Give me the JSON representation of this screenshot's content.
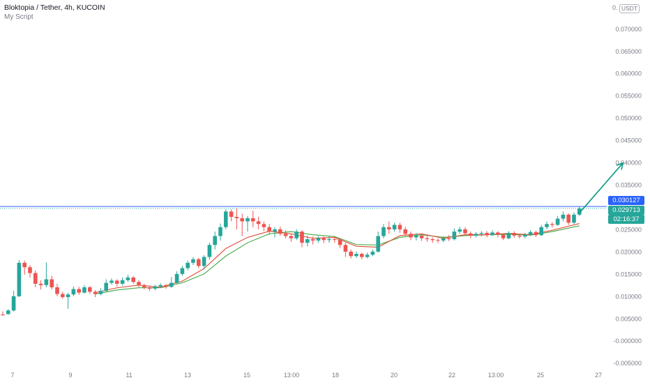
{
  "header": {
    "title": "Bloktopia / Tether, 4h, KUCOIN",
    "indicator": "My Script"
  },
  "currency": "USDT",
  "price_labels": {
    "top_cut": "0.",
    "line_level": "0.030127",
    "last_price": "0.029713",
    "countdown": "02:16:37"
  },
  "colors": {
    "up": "#26a69a",
    "down": "#ef5350",
    "ma_fast": "#e0533d",
    "ma_slow": "#4caf50",
    "hline": "#2962ff",
    "arrow": "#089981",
    "axis_text": "#787b86"
  },
  "chart_data": {
    "type": "candlestick",
    "title": "Bloktopia / Tether, 4h, KUCOIN",
    "ylim": [
      -0.005,
      0.0735
    ],
    "y_ticks": [
      "0.070000",
      "0.065000",
      "0.060000",
      "0.055000",
      "0.050000",
      "0.045000",
      "0.040000",
      "0.035000",
      "0.025000",
      "0.020000",
      "0.015000",
      "0.010000",
      "0.005000",
      "-0.000000",
      "-0.005000"
    ],
    "x_ticks": [
      "7",
      "9",
      "11",
      "13",
      "15",
      "13:00",
      "18",
      "20",
      "22",
      "13:00",
      "25",
      "27"
    ],
    "horizontal_line": 0.030127,
    "arrow": {
      "from_x": 106,
      "from_y": 0.0287,
      "to_x": 114,
      "to_y": 0.0399
    },
    "candles": [
      [
        0,
        0.0059,
        0.0058,
        0.0066,
        0.0056
      ],
      [
        1,
        0.006,
        0.0068,
        0.0071,
        0.0058
      ],
      [
        2,
        0.0068,
        0.01,
        0.0112,
        0.0066
      ],
      [
        3,
        0.01,
        0.0175,
        0.0181,
        0.0098
      ],
      [
        4,
        0.0175,
        0.0165,
        0.018,
        0.0148
      ],
      [
        5,
        0.0165,
        0.0152,
        0.017,
        0.0142
      ],
      [
        6,
        0.0152,
        0.0128,
        0.0158,
        0.012
      ],
      [
        7,
        0.0128,
        0.0125,
        0.0136,
        0.0115
      ],
      [
        8,
        0.0125,
        0.0138,
        0.0176,
        0.012
      ],
      [
        9,
        0.0138,
        0.012,
        0.0146,
        0.0115
      ],
      [
        10,
        0.012,
        0.0105,
        0.0128,
        0.01
      ],
      [
        11,
        0.0105,
        0.0098,
        0.011,
        0.0094
      ],
      [
        12,
        0.0098,
        0.0104,
        0.0108,
        0.0072
      ],
      [
        13,
        0.0104,
        0.0116,
        0.0122,
        0.01
      ],
      [
        14,
        0.0116,
        0.0108,
        0.0121,
        0.0103
      ],
      [
        15,
        0.0108,
        0.012,
        0.0125,
        0.0106
      ],
      [
        16,
        0.012,
        0.011,
        0.0123,
        0.0105
      ],
      [
        17,
        0.011,
        0.0105,
        0.0114,
        0.0098
      ],
      [
        18,
        0.0105,
        0.0112,
        0.0118,
        0.0102
      ],
      [
        19,
        0.0112,
        0.013,
        0.0138,
        0.011
      ],
      [
        20,
        0.013,
        0.0135,
        0.014,
        0.0126
      ],
      [
        21,
        0.0135,
        0.0128,
        0.0138,
        0.0122
      ],
      [
        22,
        0.0128,
        0.0136,
        0.0142,
        0.0124
      ],
      [
        23,
        0.0136,
        0.0142,
        0.0148,
        0.0132
      ],
      [
        24,
        0.0142,
        0.0132,
        0.0145,
        0.0128
      ],
      [
        25,
        0.0132,
        0.0125,
        0.0136,
        0.012
      ],
      [
        26,
        0.0125,
        0.012,
        0.0128,
        0.0115
      ],
      [
        27,
        0.012,
        0.0117,
        0.0124,
        0.0112
      ],
      [
        28,
        0.0117,
        0.0122,
        0.0126,
        0.0113
      ],
      [
        29,
        0.0122,
        0.0125,
        0.0129,
        0.0119
      ],
      [
        30,
        0.0125,
        0.0121,
        0.0127,
        0.0117
      ],
      [
        31,
        0.0121,
        0.013,
        0.0143,
        0.0119
      ],
      [
        32,
        0.013,
        0.015,
        0.0156,
        0.0128
      ],
      [
        33,
        0.015,
        0.0163,
        0.0168,
        0.0146
      ],
      [
        34,
        0.0163,
        0.0175,
        0.018,
        0.0158
      ],
      [
        35,
        0.0175,
        0.0183,
        0.0188,
        0.017
      ],
      [
        36,
        0.0183,
        0.0168,
        0.0186,
        0.0163
      ],
      [
        37,
        0.0168,
        0.0188,
        0.0192,
        0.016
      ],
      [
        38,
        0.0188,
        0.0215,
        0.022,
        0.0182
      ],
      [
        39,
        0.0215,
        0.0235,
        0.0245,
        0.0205
      ],
      [
        40,
        0.0235,
        0.0255,
        0.0263,
        0.0225
      ],
      [
        41,
        0.0255,
        0.029,
        0.0295,
        0.025
      ],
      [
        42,
        0.029,
        0.0278,
        0.0295,
        0.0268
      ],
      [
        43,
        0.0278,
        0.0275,
        0.0298,
        0.025
      ],
      [
        44,
        0.0275,
        0.0268,
        0.0285,
        0.0235
      ],
      [
        45,
        0.0268,
        0.0275,
        0.028,
        0.0245
      ],
      [
        46,
        0.0275,
        0.0268,
        0.0292,
        0.0255
      ],
      [
        47,
        0.0268,
        0.0262,
        0.0278,
        0.025
      ],
      [
        48,
        0.0262,
        0.0255,
        0.0268,
        0.0246
      ],
      [
        49,
        0.0255,
        0.0245,
        0.0262,
        0.0238
      ],
      [
        50,
        0.0245,
        0.025,
        0.0255,
        0.0232
      ],
      [
        51,
        0.025,
        0.024,
        0.0256,
        0.0236
      ],
      [
        52,
        0.024,
        0.0235,
        0.0248,
        0.023
      ],
      [
        53,
        0.0235,
        0.023,
        0.024,
        0.0222
      ],
      [
        54,
        0.023,
        0.0245,
        0.025,
        0.0226
      ],
      [
        55,
        0.0245,
        0.022,
        0.0248,
        0.021
      ],
      [
        56,
        0.022,
        0.0228,
        0.0236,
        0.0212
      ],
      [
        57,
        0.0228,
        0.0225,
        0.0234,
        0.0216
      ],
      [
        58,
        0.0225,
        0.023,
        0.0235,
        0.022
      ],
      [
        59,
        0.023,
        0.0226,
        0.0234,
        0.0219
      ],
      [
        60,
        0.0226,
        0.0228,
        0.0235,
        0.022
      ],
      [
        61,
        0.0228,
        0.0227,
        0.0232,
        0.022
      ],
      [
        62,
        0.0227,
        0.0215,
        0.023,
        0.0208
      ],
      [
        63,
        0.0215,
        0.02,
        0.022,
        0.0188
      ],
      [
        64,
        0.02,
        0.019,
        0.0205,
        0.0185
      ],
      [
        65,
        0.019,
        0.0195,
        0.02,
        0.0186
      ],
      [
        66,
        0.0195,
        0.0188,
        0.0198,
        0.0183
      ],
      [
        67,
        0.0188,
        0.0193,
        0.0198,
        0.0185
      ],
      [
        68,
        0.0193,
        0.02,
        0.0205,
        0.019
      ],
      [
        69,
        0.02,
        0.0235,
        0.0245,
        0.0198
      ],
      [
        70,
        0.0235,
        0.0255,
        0.0262,
        0.023
      ],
      [
        71,
        0.0255,
        0.025,
        0.0268,
        0.024
      ],
      [
        72,
        0.025,
        0.026,
        0.0265,
        0.0245
      ],
      [
        73,
        0.026,
        0.025,
        0.0265,
        0.0242
      ],
      [
        74,
        0.025,
        0.024,
        0.0256,
        0.0236
      ],
      [
        75,
        0.024,
        0.0232,
        0.0245,
        0.0226
      ],
      [
        76,
        0.0232,
        0.0236,
        0.0242,
        0.0225
      ],
      [
        77,
        0.0236,
        0.023,
        0.024,
        0.0224
      ],
      [
        78,
        0.023,
        0.0228,
        0.0236,
        0.0222
      ],
      [
        79,
        0.0228,
        0.0226,
        0.0232,
        0.022
      ],
      [
        80,
        0.0226,
        0.0225,
        0.023,
        0.0219
      ],
      [
        81,
        0.0225,
        0.023,
        0.0235,
        0.0221
      ],
      [
        82,
        0.023,
        0.0228,
        0.0237,
        0.0224
      ],
      [
        83,
        0.0228,
        0.0245,
        0.0252,
        0.0225
      ],
      [
        84,
        0.0245,
        0.025,
        0.0256,
        0.024
      ],
      [
        85,
        0.025,
        0.0241,
        0.0255,
        0.0236
      ],
      [
        86,
        0.0241,
        0.0236,
        0.0245,
        0.023
      ],
      [
        87,
        0.0236,
        0.024,
        0.0244,
        0.0232
      ],
      [
        88,
        0.024,
        0.0242,
        0.0246,
        0.0234
      ],
      [
        89,
        0.0242,
        0.0237,
        0.0246,
        0.0232
      ],
      [
        90,
        0.0237,
        0.0243,
        0.0248,
        0.0235
      ],
      [
        91,
        0.0243,
        0.0238,
        0.0246,
        0.0232
      ],
      [
        92,
        0.0238,
        0.023,
        0.0241,
        0.0226
      ],
      [
        93,
        0.023,
        0.0242,
        0.0246,
        0.0228
      ],
      [
        94,
        0.0242,
        0.0236,
        0.0246,
        0.0231
      ],
      [
        95,
        0.0236,
        0.0234,
        0.024,
        0.0229
      ],
      [
        96,
        0.0234,
        0.0238,
        0.0242,
        0.023
      ],
      [
        97,
        0.0238,
        0.0244,
        0.0248,
        0.0235
      ],
      [
        98,
        0.0244,
        0.0237,
        0.0247,
        0.0233
      ],
      [
        99,
        0.0237,
        0.0255,
        0.026,
        0.0235
      ],
      [
        100,
        0.0255,
        0.0262,
        0.0268,
        0.025
      ],
      [
        101,
        0.0262,
        0.026,
        0.0266,
        0.0254
      ],
      [
        102,
        0.026,
        0.0274,
        0.028,
        0.0258
      ],
      [
        103,
        0.0274,
        0.0283,
        0.029,
        0.0268
      ],
      [
        104,
        0.0283,
        0.0265,
        0.0286,
        0.026
      ],
      [
        105,
        0.0265,
        0.0283,
        0.0288,
        0.0262
      ],
      [
        106,
        0.0283,
        0.0297,
        0.0301,
        0.028
      ]
    ],
    "ma_slow": [
      [
        17,
        0.0105
      ],
      [
        21,
        0.0114
      ],
      [
        25,
        0.0119
      ],
      [
        29,
        0.0119
      ],
      [
        33,
        0.013
      ],
      [
        37,
        0.015
      ],
      [
        41,
        0.019
      ],
      [
        45,
        0.022
      ],
      [
        49,
        0.024
      ],
      [
        53,
        0.0245
      ],
      [
        57,
        0.0238
      ],
      [
        61,
        0.0234
      ],
      [
        65,
        0.0216
      ],
      [
        69,
        0.0215
      ],
      [
        73,
        0.0232
      ],
      [
        77,
        0.0238
      ],
      [
        81,
        0.0232
      ],
      [
        85,
        0.0236
      ],
      [
        89,
        0.0238
      ],
      [
        93,
        0.0239
      ],
      [
        97,
        0.0237
      ],
      [
        101,
        0.0245
      ],
      [
        106,
        0.0258
      ]
    ],
    "ma_fast": [
      [
        17,
        0.0108
      ],
      [
        21,
        0.0119
      ],
      [
        25,
        0.0125
      ],
      [
        29,
        0.012
      ],
      [
        33,
        0.0134
      ],
      [
        37,
        0.0162
      ],
      [
        41,
        0.0207
      ],
      [
        45,
        0.0232
      ],
      [
        49,
        0.0246
      ],
      [
        53,
        0.024
      ],
      [
        57,
        0.023
      ],
      [
        61,
        0.0232
      ],
      [
        65,
        0.0212
      ],
      [
        69,
        0.021
      ],
      [
        73,
        0.0236
      ],
      [
        77,
        0.024
      ],
      [
        81,
        0.023
      ],
      [
        85,
        0.0238
      ],
      [
        89,
        0.0238
      ],
      [
        93,
        0.0241
      ],
      [
        97,
        0.0238
      ],
      [
        101,
        0.0248
      ],
      [
        106,
        0.0263
      ]
    ]
  }
}
